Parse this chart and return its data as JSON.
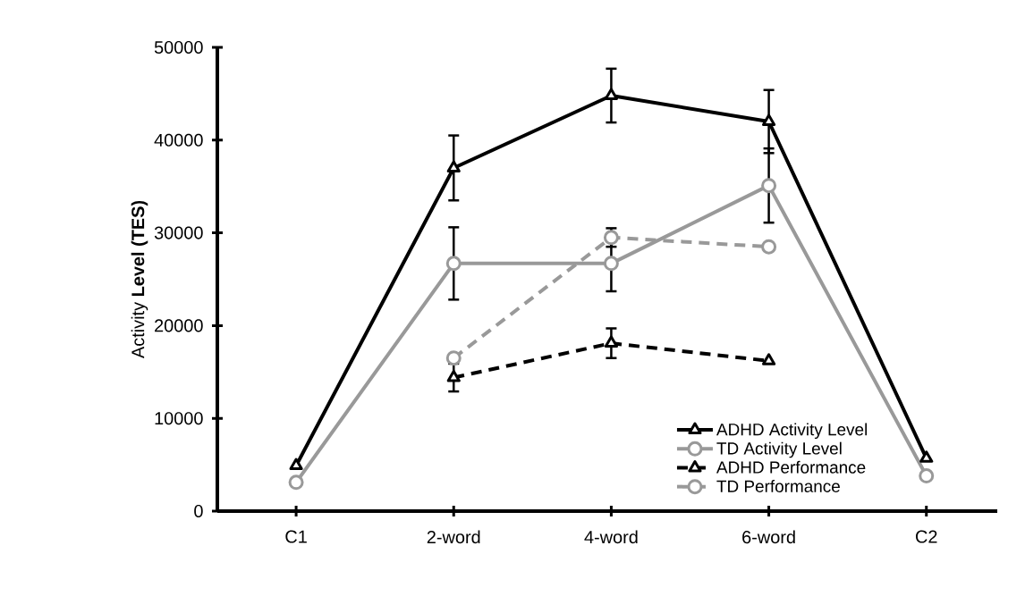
{
  "chart_data": {
    "type": "line",
    "ylabel": "Activity **Level (TES)**",
    "categories": [
      "C1",
      "2-word",
      "4-word",
      "6-word",
      "C2"
    ],
    "ylim": [
      0,
      50000
    ],
    "yticks": [
      0,
      10000,
      20000,
      30000,
      40000,
      50000
    ],
    "grid": false,
    "legend": "bottom right",
    "series": [
      {
        "name": "ADHD Activity Level",
        "color": "#000000",
        "marker": "triangle",
        "line_style": "solid",
        "values": [
          4900,
          37000,
          44800,
          42000,
          5700
        ],
        "errors": [
          null,
          3500,
          2900,
          3400,
          null
        ]
      },
      {
        "name": "TD Activity Level",
        "color": "#999999",
        "marker": "circle",
        "line_style": "solid",
        "values": [
          3100,
          26700,
          26700,
          35100,
          3800
        ],
        "errors": [
          null,
          3900,
          3000,
          4000,
          null
        ]
      },
      {
        "name": "ADHD Performance",
        "color": "#000000",
        "marker": "triangle",
        "line_style": "dashed",
        "values": [
          null,
          14400,
          18100,
          16200,
          null
        ],
        "errors": [
          null,
          1500,
          1600,
          null,
          null
        ]
      },
      {
        "name": "TD Performance",
        "color": "#999999",
        "marker": "circle",
        "line_style": "dashed",
        "values": [
          null,
          16500,
          29500,
          28500,
          null
        ],
        "errors": [
          null,
          null,
          1000,
          null,
          null
        ]
      }
    ]
  }
}
